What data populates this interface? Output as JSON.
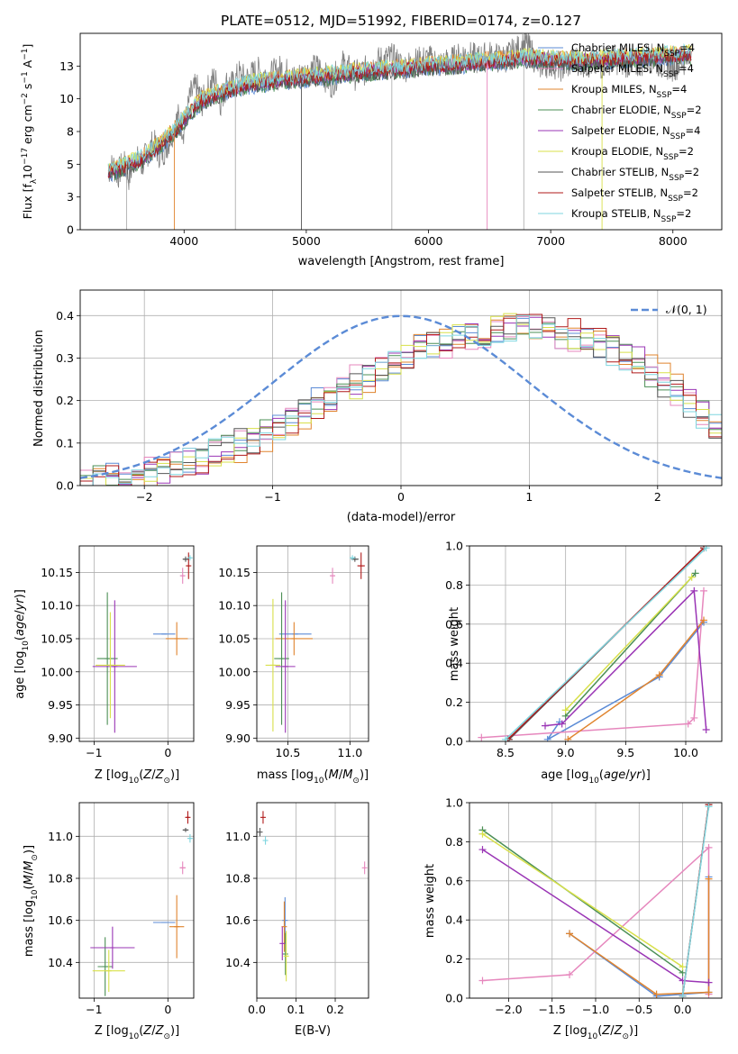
{
  "figure_title": "PLATE=0512, MJD=51992, FIBERID=0174, z=0.127",
  "models": [
    {
      "name": "Chabrier MILES, N_SSP=4",
      "label_main": "Chabrier MILES, N",
      "label_sub": "SSP",
      "label_tail": "=4",
      "color": "#5b8bd6"
    },
    {
      "name": "Salpeter MILES, N_SSP=4",
      "label_main": "Salpeter MILES, N",
      "label_sub": "SSP",
      "label_tail": "=4",
      "color": "#e687bd"
    },
    {
      "name": "Kroupa MILES, N_SSP=4",
      "label_main": "Kroupa MILES, N",
      "label_sub": "SSP",
      "label_tail": "=4",
      "color": "#e0842e"
    },
    {
      "name": "Chabrier ELODIE, N_SSP=2",
      "label_main": "Chabrier ELODIE, N",
      "label_sub": "SSP",
      "label_tail": "=2",
      "color": "#4b8f55"
    },
    {
      "name": "Salpeter ELODIE, N_SSP=4",
      "label_main": "Salpeter ELODIE, N",
      "label_sub": "SSP",
      "label_tail": "=4",
      "color": "#9a35b5"
    },
    {
      "name": "Kroupa ELODIE, N_SSP=2",
      "label_main": "Kroupa ELODIE, N",
      "label_sub": "SSP",
      "label_tail": "=2",
      "color": "#d8e04a"
    },
    {
      "name": "Chabrier STELIB, N_SSP=2",
      "label_main": "Chabrier STELIB, N",
      "label_sub": "SSP",
      "label_tail": "=2",
      "color": "#555555"
    },
    {
      "name": "Salpeter STELIB, N_SSP=2",
      "label_main": "Salpeter STELIB, N",
      "label_sub": "SSP",
      "label_tail": "=2",
      "color": "#b01a1a"
    },
    {
      "name": "Kroupa STELIB, N_SSP=2",
      "label_main": "Kroupa STELIB, N",
      "label_sub": "SSP",
      "label_tail": "=2",
      "color": "#7fd6df"
    }
  ],
  "chart_data": [
    {
      "id": "spectrum",
      "type": "line",
      "xlabel": "wavelength [Angstrom, rest frame]",
      "ylabel": "Flux [f_λ 10^-17 erg cm^-2 s^-1 A^-1]",
      "xlim": [
        3150,
        8400
      ],
      "ylim": [
        0,
        15
      ],
      "xticks": [
        4000,
        5000,
        6000,
        7000,
        8000
      ],
      "yticks": [
        0.0,
        2.5,
        5.0,
        7.5,
        10.0,
        12.5
      ],
      "legend": "top-right",
      "data_spectrum_color": "#808080",
      "data_spectrum": {
        "x": [
          3380,
          3420,
          3460,
          3500,
          3550,
          3600,
          3650,
          3700,
          3750,
          3800,
          3850,
          3900,
          3950,
          4000,
          4050,
          4100,
          4150,
          4200,
          4250,
          4300,
          4350,
          4400,
          4450,
          4500,
          4600,
          4700,
          4800,
          4900,
          5000,
          5100,
          5200,
          5300,
          5400,
          5500,
          5600,
          5700,
          5800,
          5900,
          6000,
          6100,
          6200,
          6300,
          6400,
          6500,
          6600,
          6700,
          6800,
          6900,
          7000,
          7100,
          7200,
          7300,
          7400,
          7500,
          7600,
          7700,
          7800,
          7900,
          8000,
          8100
        ],
        "y": [
          4.5,
          4.9,
          4.2,
          5.1,
          4.0,
          5.6,
          4.8,
          5.9,
          6.6,
          5.8,
          6.2,
          7.4,
          8.6,
          7.6,
          10.2,
          10.9,
          9.7,
          10.8,
          11.6,
          9.8,
          11.2,
          11.0,
          11.9,
          11.4,
          12.1,
          11.7,
          12.3,
          11.5,
          12.0,
          12.4,
          11.1,
          12.6,
          11.8,
          12.2,
          12.9,
          13.1,
          12.4,
          12.8,
          13.0,
          12.6,
          12.9,
          13.4,
          13.0,
          13.3,
          13.0,
          13.5,
          14.2,
          12.6,
          12.8,
          12.4,
          13.0,
          12.7,
          12.5,
          13.1,
          12.8,
          12.6,
          13.2,
          12.7,
          12.5,
          12.9
        ]
      },
      "model_base": {
        "x": [
          3380,
          3450,
          3550,
          3650,
          3750,
          3850,
          3950,
          4050,
          4150,
          4250,
          4350,
          4450,
          4600,
          4800,
          5000,
          5200,
          5400,
          5600,
          5800,
          6000,
          6200,
          6400,
          6600,
          6800,
          7000,
          7200,
          7400,
          7600,
          7800,
          8000,
          8150
        ],
        "y": [
          4.4,
          4.6,
          5.0,
          5.4,
          6.1,
          6.9,
          7.8,
          9.0,
          9.9,
          10.3,
          10.6,
          10.9,
          11.2,
          11.4,
          11.6,
          11.8,
          12.0,
          12.2,
          12.3,
          12.5,
          12.6,
          12.8,
          12.9,
          13.1,
          13.0,
          12.9,
          13.0,
          13.1,
          13.2,
          13.3,
          13.4
        ]
      },
      "absorption_lines_x": [
        3530,
        3920,
        4420,
        4960,
        5700,
        6480,
        6780,
        7420
      ]
    },
    {
      "id": "residual-hist",
      "type": "histogram",
      "xlabel": "(data-model)/error",
      "ylabel": "Normed distribution",
      "xlim": [
        -2.5,
        2.5
      ],
      "ylim": [
        0,
        0.46
      ],
      "xticks": [
        -2,
        -1,
        0,
        1,
        2
      ],
      "yticks": [
        0.0,
        0.1,
        0.2,
        0.3,
        0.4
      ],
      "grid": true,
      "legend": "top-right",
      "normal_curve_label": "𝒩(0, 1)",
      "normal_curve_color": "#5b8bd6",
      "bin_edges_start": -2.5,
      "bin_width": 0.1,
      "base_hist": [
        0.015,
        0.02,
        0.025,
        0.03,
        0.035,
        0.04,
        0.045,
        0.05,
        0.06,
        0.07,
        0.08,
        0.09,
        0.1,
        0.11,
        0.125,
        0.14,
        0.16,
        0.18,
        0.2,
        0.215,
        0.23,
        0.245,
        0.26,
        0.275,
        0.29,
        0.305,
        0.32,
        0.33,
        0.34,
        0.35,
        0.355,
        0.36,
        0.365,
        0.37,
        0.37,
        0.365,
        0.36,
        0.355,
        0.35,
        0.34,
        0.33,
        0.315,
        0.3,
        0.28,
        0.26,
        0.24,
        0.215,
        0.19,
        0.165,
        0.14
      ]
    },
    {
      "id": "age-vs-Z",
      "type": "errorbar",
      "xlabel": "Z [log10(Z/Z☉)]",
      "ylabel": "age [log10(age/yr)]",
      "xlim": [
        -1.2,
        0.35
      ],
      "ylim": [
        9.895,
        10.19
      ],
      "xticks": [
        -1,
        0
      ],
      "yticks": [
        9.9,
        9.95,
        10.0,
        10.05,
        10.1,
        10.15
      ],
      "grid": true,
      "points": [
        {
          "model": 0,
          "x": -0.05,
          "y": 10.057,
          "xerr": 0.15,
          "yerr": 0
        },
        {
          "model": 1,
          "x": 0.2,
          "y": 10.145,
          "xerr": 0.03,
          "yerr": 0.012
        },
        {
          "model": 2,
          "x": 0.12,
          "y": 10.05,
          "xerr": 0.15,
          "yerr": 0.025
        },
        {
          "model": 3,
          "x": -0.82,
          "y": 10.02,
          "xerr": 0.14,
          "yerr": 0.1
        },
        {
          "model": 4,
          "x": -0.72,
          "y": 10.008,
          "xerr": 0.3,
          "yerr": 0.1
        },
        {
          "model": 5,
          "x": -0.78,
          "y": 10.01,
          "xerr": 0.2,
          "yerr": 0.08
        },
        {
          "model": 6,
          "x": 0.24,
          "y": 10.17,
          "xerr": 0.04,
          "yerr": 0.004
        },
        {
          "model": 7,
          "x": 0.28,
          "y": 10.16,
          "xerr": 0.02,
          "yerr": 0.02
        },
        {
          "model": 8,
          "x": 0.3,
          "y": 10.172,
          "xerr": 0.02,
          "yerr": 0.004
        }
      ]
    },
    {
      "id": "age-vs-mass",
      "type": "errorbar",
      "xlabel": "mass [log10(M/M☉)]",
      "ylabel": "",
      "xlim": [
        10.25,
        11.15
      ],
      "ylim": [
        9.895,
        10.19
      ],
      "xticks": [
        10.5,
        11.0
      ],
      "yticks": [
        9.9,
        9.95,
        10.0,
        10.05,
        10.1,
        10.15
      ],
      "grid": true,
      "points": [
        {
          "model": 0,
          "x": 10.56,
          "y": 10.057,
          "xerr": 0.13,
          "yerr": 0
        },
        {
          "model": 1,
          "x": 10.86,
          "y": 10.145,
          "xerr": 0.02,
          "yerr": 0.012
        },
        {
          "model": 2,
          "x": 10.55,
          "y": 10.05,
          "xerr": 0.15,
          "yerr": 0.025
        },
        {
          "model": 3,
          "x": 10.45,
          "y": 10.02,
          "xerr": 0.06,
          "yerr": 0.1
        },
        {
          "model": 4,
          "x": 10.48,
          "y": 10.008,
          "xerr": 0.08,
          "yerr": 0.1
        },
        {
          "model": 5,
          "x": 10.38,
          "y": 10.01,
          "xerr": 0.06,
          "yerr": 0.1
        },
        {
          "model": 6,
          "x": 11.04,
          "y": 10.17,
          "xerr": 0.03,
          "yerr": 0.004
        },
        {
          "model": 7,
          "x": 11.09,
          "y": 10.16,
          "xerr": 0.03,
          "yerr": 0.02
        },
        {
          "model": 8,
          "x": 11.02,
          "y": 10.172,
          "xerr": 0.02,
          "yerr": 0.004
        }
      ]
    },
    {
      "id": "mass-weight-vs-age",
      "type": "line",
      "xlabel": "age [log10(age/yr)]",
      "ylabel": "mass weight",
      "xlim": [
        8.2,
        10.3
      ],
      "ylim": [
        0.0,
        1.0
      ],
      "xticks": [
        8.5,
        9.0,
        9.5,
        10.0
      ],
      "yticks": [
        0.0,
        0.2,
        0.4,
        0.6,
        0.8,
        1.0
      ],
      "grid": true,
      "series": [
        {
          "model": 0,
          "x": [
            8.95,
            8.85,
            9.78,
            10.15
          ],
          "y": [
            0.1,
            0.01,
            0.33,
            0.61
          ]
        },
        {
          "model": 1,
          "x": [
            8.3,
            10.02,
            10.07,
            10.15
          ],
          "y": [
            0.02,
            0.09,
            0.12,
            0.77
          ]
        },
        {
          "model": 2,
          "x": [
            9.02,
            9.78,
            10.15
          ],
          "y": [
            0.01,
            0.34,
            0.62
          ]
        },
        {
          "model": 3,
          "x": [
            9.0,
            10.08
          ],
          "y": [
            0.13,
            0.86
          ]
        },
        {
          "model": 4,
          "x": [
            8.83,
            8.97,
            10.07,
            10.17
          ],
          "y": [
            0.08,
            0.09,
            0.77,
            0.06
          ]
        },
        {
          "model": 5,
          "x": [
            9.0,
            10.05
          ],
          "y": [
            0.16,
            0.84
          ]
        },
        {
          "model": 6,
          "x": [
            8.53,
            10.15
          ],
          "y": [
            0.01,
            0.99
          ]
        },
        {
          "model": 7,
          "x": [
            8.52,
            10.15
          ],
          "y": [
            0.01,
            0.99
          ]
        },
        {
          "model": 8,
          "x": [
            8.5,
            10.17
          ],
          "y": [
            0.01,
            0.99
          ]
        }
      ]
    },
    {
      "id": "mass-vs-Z",
      "type": "errorbar",
      "xlabel": "Z [log10(Z/Z☉)]",
      "ylabel": "mass [log10(M/M☉)]",
      "xlim": [
        -1.2,
        0.35
      ],
      "ylim": [
        10.23,
        11.16
      ],
      "xticks": [
        -1,
        0
      ],
      "yticks": [
        10.4,
        10.6,
        10.8,
        11.0
      ],
      "grid": true,
      "points": [
        {
          "model": 0,
          "x": -0.05,
          "y": 10.59,
          "xerr": 0.15,
          "yerr": 0
        },
        {
          "model": 1,
          "x": 0.2,
          "y": 10.85,
          "xerr": 0.04,
          "yerr": 0.03
        },
        {
          "model": 2,
          "x": 0.12,
          "y": 10.57,
          "xerr": 0.1,
          "yerr": 0.15
        },
        {
          "model": 3,
          "x": -0.85,
          "y": 10.38,
          "xerr": 0.1,
          "yerr": 0.14
        },
        {
          "model": 4,
          "x": -0.75,
          "y": 10.47,
          "xerr": 0.3,
          "yerr": 0.1
        },
        {
          "model": 5,
          "x": -0.8,
          "y": 10.36,
          "xerr": 0.22,
          "yerr": 0.1
        },
        {
          "model": 6,
          "x": 0.24,
          "y": 11.03,
          "xerr": 0.04,
          "yerr": 0.01
        },
        {
          "model": 7,
          "x": 0.27,
          "y": 11.09,
          "xerr": 0.02,
          "yerr": 0.03
        },
        {
          "model": 8,
          "x": 0.3,
          "y": 10.99,
          "xerr": 0.02,
          "yerr": 0.02
        }
      ]
    },
    {
      "id": "mass-vs-EBV",
      "type": "errorbar",
      "xlabel": "E(B-V)",
      "ylabel": "",
      "xlim": [
        0.0,
        0.285
      ],
      "ylim": [
        10.23,
        11.16
      ],
      "xticks": [
        0.0,
        0.1,
        0.2
      ],
      "yticks": [
        10.4,
        10.6,
        10.8,
        11.0
      ],
      "grid": true,
      "points": [
        {
          "model": 0,
          "x": 0.072,
          "y": 10.6,
          "xerr": 0,
          "yerr": 0.11
        },
        {
          "model": 1,
          "x": 0.275,
          "y": 10.85,
          "xerr": 0,
          "yerr": 0.03
        },
        {
          "model": 2,
          "x": 0.07,
          "y": 10.57,
          "xerr": 0,
          "yerr": 0.12
        },
        {
          "model": 3,
          "x": 0.073,
          "y": 10.44,
          "xerr": 0,
          "yerr": 0.1
        },
        {
          "model": 4,
          "x": 0.065,
          "y": 10.49,
          "xerr": 0,
          "yerr": 0.08
        },
        {
          "model": 5,
          "x": 0.075,
          "y": 10.43,
          "xerr": 0,
          "yerr": 0.12
        },
        {
          "model": 6,
          "x": 0.008,
          "y": 11.02,
          "xerr": 0,
          "yerr": 0.02
        },
        {
          "model": 7,
          "x": 0.016,
          "y": 11.09,
          "xerr": 0,
          "yerr": 0.03
        },
        {
          "model": 8,
          "x": 0.022,
          "y": 10.98,
          "xerr": 0,
          "yerr": 0.02
        }
      ]
    },
    {
      "id": "mass-weight-vs-Z",
      "type": "line",
      "xlabel": "Z [log10(Z/Z☉)]",
      "ylabel": "mass weight",
      "xlim": [
        -2.45,
        0.45
      ],
      "ylim": [
        0.0,
        1.0
      ],
      "xticks": [
        -2.0,
        -1.5,
        -1.0,
        -0.5,
        0.0
      ],
      "yticks": [
        0.0,
        0.2,
        0.4,
        0.6,
        0.8,
        1.0
      ],
      "grid": true,
      "series": [
        {
          "model": 0,
          "x": [
            -1.3,
            -0.3,
            0.3,
            0.3
          ],
          "y": [
            0.33,
            0.01,
            0.03,
            0.62
          ]
        },
        {
          "model": 1,
          "x": [
            -2.3,
            -1.3,
            0.3,
            0.3
          ],
          "y": [
            0.09,
            0.12,
            0.77,
            0.02
          ]
        },
        {
          "model": 2,
          "x": [
            -1.3,
            -0.3,
            0.3,
            0.3
          ],
          "y": [
            0.33,
            0.02,
            0.03,
            0.61
          ]
        },
        {
          "model": 3,
          "x": [
            -2.3,
            0.0
          ],
          "y": [
            0.86,
            0.13
          ]
        },
        {
          "model": 4,
          "x": [
            -2.3,
            0.0,
            0.3
          ],
          "y": [
            0.76,
            0.09,
            0.08
          ]
        },
        {
          "model": 5,
          "x": [
            -2.3,
            0.0
          ],
          "y": [
            0.84,
            0.16
          ]
        },
        {
          "model": 6,
          "x": [
            0.0,
            0.3
          ],
          "y": [
            0.01,
            0.99
          ]
        },
        {
          "model": 7,
          "x": [
            0.0,
            0.3
          ],
          "y": [
            0.01,
            0.99
          ]
        },
        {
          "model": 8,
          "x": [
            0.0,
            0.3
          ],
          "y": [
            0.01,
            0.98
          ]
        }
      ]
    }
  ]
}
